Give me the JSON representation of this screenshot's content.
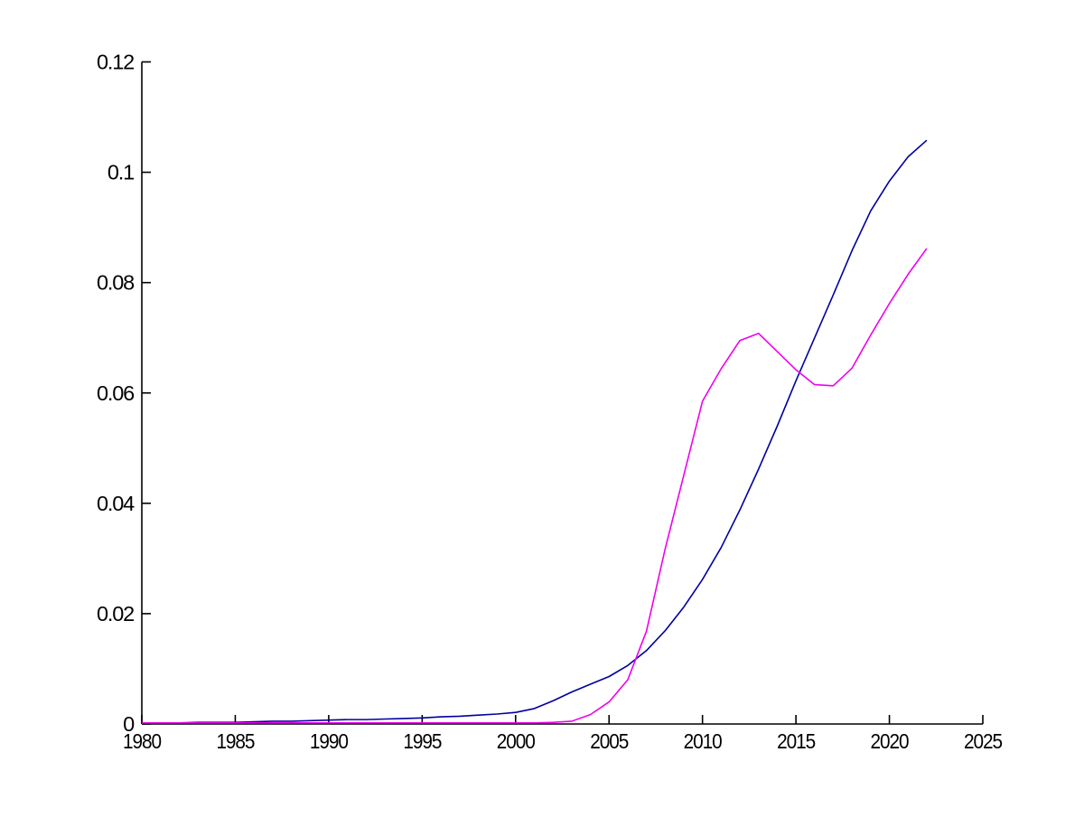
{
  "figure": {
    "background": "#ffffff"
  },
  "chart_data": {
    "type": "line",
    "x": [
      1980,
      1981,
      1982,
      1983,
      1984,
      1985,
      1986,
      1987,
      1988,
      1989,
      1990,
      1991,
      1992,
      1993,
      1994,
      1995,
      1996,
      1997,
      1998,
      1999,
      2000,
      2001,
      2002,
      2003,
      2004,
      2005,
      2006,
      2007,
      2008,
      2009,
      2010,
      2011,
      2012,
      2013,
      2014,
      2015,
      2016,
      2017,
      2018,
      2019,
      2020,
      2021,
      2022
    ],
    "series": [
      {
        "name": "blue-line",
        "color": "#0000A0",
        "values": [
          0.0002,
          0.0002,
          0.0002,
          0.0003,
          0.0003,
          0.0003,
          0.0004,
          0.0005,
          0.0005,
          0.0006,
          0.0007,
          0.0008,
          0.0008,
          0.0009,
          0.001,
          0.0011,
          0.0013,
          0.0014,
          0.0016,
          0.0018,
          0.0021,
          0.0028,
          0.0042,
          0.0058,
          0.0072,
          0.0086,
          0.0106,
          0.0133,
          0.0169,
          0.0212,
          0.0262,
          0.032,
          0.0388,
          0.0462,
          0.054,
          0.0622,
          0.07,
          0.0778,
          0.0858,
          0.093,
          0.0984,
          0.1028,
          0.1058
        ]
      },
      {
        "name": "magenta-line",
        "color": "#EE00EE",
        "values": [
          0.0002,
          0.0002,
          0.0002,
          0.0002,
          0.0002,
          0.0002,
          0.0002,
          0.0002,
          0.0002,
          0.0002,
          0.0002,
          0.0002,
          0.0002,
          0.0002,
          0.0002,
          0.0002,
          0.0002,
          0.0002,
          0.0002,
          0.0002,
          0.0002,
          0.0002,
          0.0003,
          0.0005,
          0.0017,
          0.004,
          0.008,
          0.0168,
          0.0317,
          0.0451,
          0.0585,
          0.0644,
          0.0695,
          0.0708,
          0.0675,
          0.0642,
          0.0615,
          0.0613,
          0.0645,
          0.0705,
          0.0762,
          0.0815,
          0.0862
        ]
      }
    ],
    "title": "",
    "xlabel": "",
    "ylabel": "",
    "xlim": [
      1980,
      2025
    ],
    "ylim": [
      0,
      0.12
    ],
    "xticks": [
      1980,
      1985,
      1990,
      1995,
      2000,
      2005,
      2010,
      2015,
      2020,
      2025
    ],
    "xtick_labels": [
      "1980",
      "1985",
      "1990",
      "1995",
      "2000",
      "2005",
      "2010",
      "2015",
      "2020",
      "2025"
    ],
    "yticks": [
      0,
      0.02,
      0.04,
      0.06,
      0.08,
      0.1,
      0.12
    ],
    "ytick_labels": [
      "0",
      "0.02",
      "0.04",
      "0.06",
      "0.08",
      "0.1",
      "0.12"
    ],
    "grid": false,
    "legend": null,
    "axis_color": "#000000"
  }
}
